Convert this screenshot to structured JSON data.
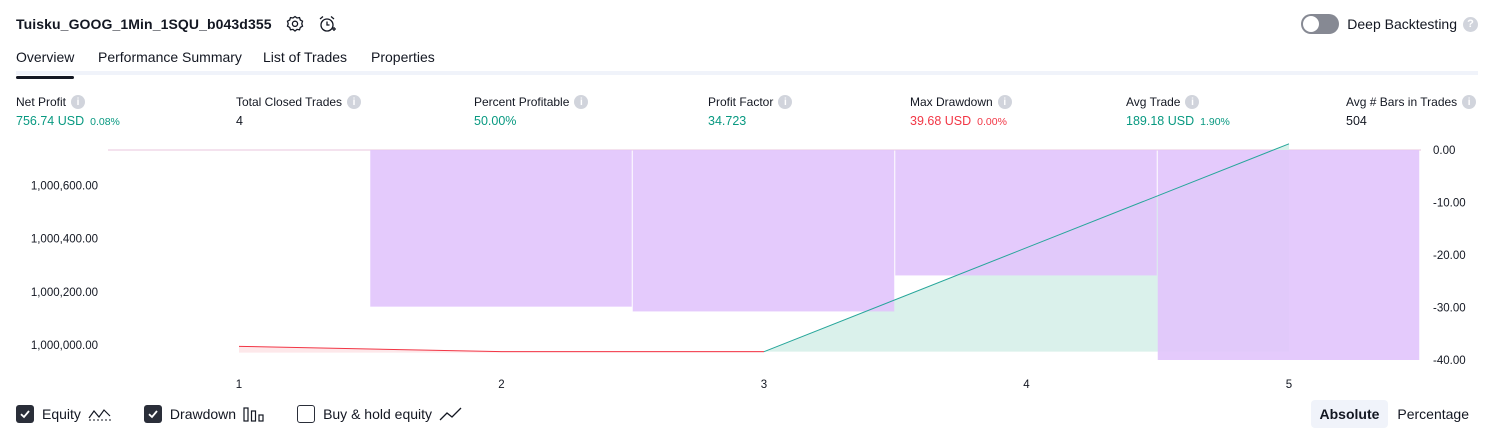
{
  "header": {
    "title": "Tuisku_GOOG_1Min_1SQU_b043d355"
  },
  "deep_backtesting": {
    "label": "Deep Backtesting",
    "enabled": false
  },
  "tabs": [
    {
      "label": "Overview"
    },
    {
      "label": "Performance Summary"
    },
    {
      "label": "List of Trades"
    },
    {
      "label": "Properties"
    }
  ],
  "metrics": [
    {
      "label": "Net Profit",
      "value": "756.74 USD",
      "pct": "0.08%",
      "tone": "pos"
    },
    {
      "label": "Total Closed Trades",
      "value": "4",
      "pct": "",
      "tone": "neu"
    },
    {
      "label": "Percent Profitable",
      "value": "50.00%",
      "pct": "",
      "tone": "pos"
    },
    {
      "label": "Profit Factor",
      "value": "34.723",
      "pct": "",
      "tone": "pos"
    },
    {
      "label": "Max Drawdown",
      "value": "39.68 USD",
      "pct": "0.00%",
      "tone": "neg"
    },
    {
      "label": "Avg Trade",
      "value": "189.18 USD",
      "pct": "1.90%",
      "tone": "pos"
    },
    {
      "label": "Avg # Bars in Trades",
      "value": "504",
      "pct": "",
      "tone": "neu"
    }
  ],
  "legend": {
    "equity": {
      "label": "Equity",
      "checked": true
    },
    "drawdown": {
      "label": "Drawdown",
      "checked": true
    },
    "buy_hold": {
      "label": "Buy & hold equity",
      "checked": false
    }
  },
  "mode": {
    "absolute": "Absolute",
    "percentage": "Percentage",
    "selected": "Absolute"
  },
  "colors": {
    "positive": "#089981",
    "negative": "#f23645",
    "drawdown": "#e1c4fc",
    "equity_up": "#26a69a",
    "equity_down": "#f23645",
    "area_up": "#d8f0ea"
  },
  "chart_data": {
    "type": "area",
    "x_ticks": [
      "1",
      "2",
      "3",
      "4",
      "5"
    ],
    "left_axis": {
      "ticks": [
        "1,000,600.00",
        "1,000,400.00",
        "1,000,200.00",
        "1,000,000.00"
      ],
      "ylim": [
        999970,
        1000760
      ]
    },
    "right_axis": {
      "ticks": [
        "0.00",
        "-10.00",
        "-20.00",
        "-30.00",
        "-40.00"
      ],
      "ylim": [
        -39.68,
        0
      ]
    },
    "equity": {
      "x": [
        1,
        2,
        3,
        5
      ],
      "y": [
        999995,
        999975,
        999975,
        1000757
      ]
    },
    "drawdown": {
      "x": [
        1.5,
        2.5,
        3.5,
        4.5
      ],
      "widths": [
        1,
        1,
        1,
        1
      ],
      "values": [
        -29.6,
        -30.5,
        -23.7,
        -39.68
      ]
    },
    "annotations": [
      "Equity",
      "Drawdown"
    ],
    "grid": false
  }
}
